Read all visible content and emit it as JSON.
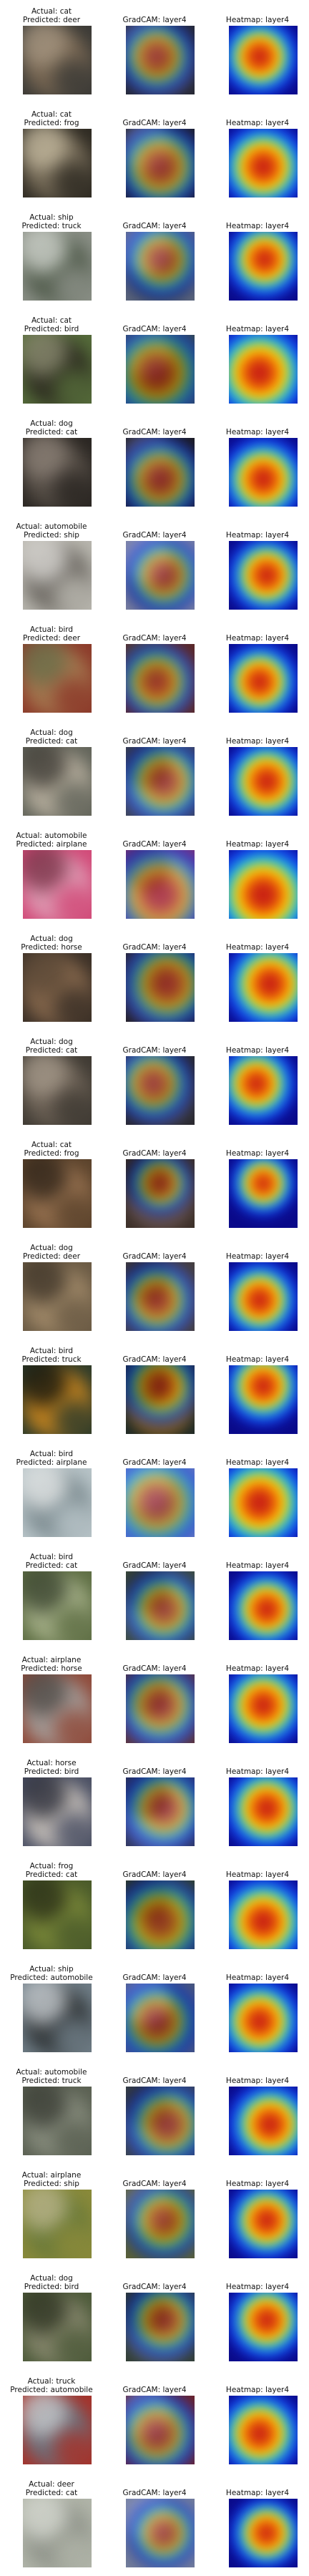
{
  "column_titles": {
    "gradcam": "GradCAM: layer4",
    "heatmap": "Heatmap: layer4"
  },
  "labels": {
    "actual_prefix": "Actual: ",
    "predicted_prefix": "Predicted: "
  },
  "rows": [
    {
      "actual": "cat",
      "predicted": "deer",
      "actual_text": "Actual: cat",
      "predicted_text": "Predicted: deer"
    },
    {
      "actual": "cat",
      "predicted": "frog",
      "actual_text": "Actual: cat",
      "predicted_text": "Predicted: frog"
    },
    {
      "actual": "ship",
      "predicted": "truck",
      "actual_text": "Actual: ship",
      "predicted_text": "Predicted: truck"
    },
    {
      "actual": "cat",
      "predicted": "bird",
      "actual_text": "Actual: cat",
      "predicted_text": "Predicted: bird"
    },
    {
      "actual": "dog",
      "predicted": "cat",
      "actual_text": "Actual: dog",
      "predicted_text": "Predicted: cat"
    },
    {
      "actual": "automobile",
      "predicted": "ship",
      "actual_text": "Actual: automobile",
      "predicted_text": "Predicted: ship"
    },
    {
      "actual": "bird",
      "predicted": "deer",
      "actual_text": "Actual: bird",
      "predicted_text": "Predicted: deer"
    },
    {
      "actual": "dog",
      "predicted": "cat",
      "actual_text": "Actual: dog",
      "predicted_text": "Predicted: cat"
    },
    {
      "actual": "automobile",
      "predicted": "airplane",
      "actual_text": "Actual: automobile",
      "predicted_text": "Predicted: airplane"
    },
    {
      "actual": "dog",
      "predicted": "horse",
      "actual_text": "Actual: dog",
      "predicted_text": "Predicted: horse"
    },
    {
      "actual": "dog",
      "predicted": "cat",
      "actual_text": "Actual: dog",
      "predicted_text": "Predicted: cat"
    },
    {
      "actual": "cat",
      "predicted": "frog",
      "actual_text": "Actual: cat",
      "predicted_text": "Predicted: frog"
    },
    {
      "actual": "dog",
      "predicted": "deer",
      "actual_text": "Actual: dog",
      "predicted_text": "Predicted: deer"
    },
    {
      "actual": "bird",
      "predicted": "truck",
      "actual_text": "Actual: bird",
      "predicted_text": "Predicted: truck"
    },
    {
      "actual": "bird",
      "predicted": "airplane",
      "actual_text": "Actual: bird",
      "predicted_text": "Predicted: airplane"
    },
    {
      "actual": "bird",
      "predicted": "cat",
      "actual_text": "Actual: bird",
      "predicted_text": "Predicted: cat"
    },
    {
      "actual": "airplane",
      "predicted": "horse",
      "actual_text": "Actual: airplane",
      "predicted_text": "Predicted: horse"
    },
    {
      "actual": "horse",
      "predicted": "bird",
      "actual_text": "Actual: horse",
      "predicted_text": "Predicted: bird"
    },
    {
      "actual": "frog",
      "predicted": "cat",
      "actual_text": "Actual: frog",
      "predicted_text": "Predicted: cat"
    },
    {
      "actual": "ship",
      "predicted": "automobile",
      "actual_text": "Actual: ship",
      "predicted_text": "Predicted: automobile"
    },
    {
      "actual": "automobile",
      "predicted": "truck",
      "actual_text": "Actual: automobile",
      "predicted_text": "Predicted: truck"
    },
    {
      "actual": "airplane",
      "predicted": "ship",
      "actual_text": "Actual: airplane",
      "predicted_text": "Predicted: ship"
    },
    {
      "actual": "dog",
      "predicted": "bird",
      "actual_text": "Actual: dog",
      "predicted_text": "Predicted: bird"
    },
    {
      "actual": "truck",
      "predicted": "automobile",
      "actual_text": "Actual: truck",
      "predicted_text": "Predicted: automobile"
    },
    {
      "actual": "deer",
      "predicted": "cat",
      "actual_text": "Actual: deer",
      "predicted_text": "Predicted: cat"
    }
  ],
  "colors": {
    "heat_hot": "#c81e14",
    "heat_warm": "#ff8a00",
    "heat_mid": "#ffe000",
    "heat_cool": "#19c7e6",
    "heat_cold": "#1437e6",
    "heat_base": "#0a0a8a"
  }
}
